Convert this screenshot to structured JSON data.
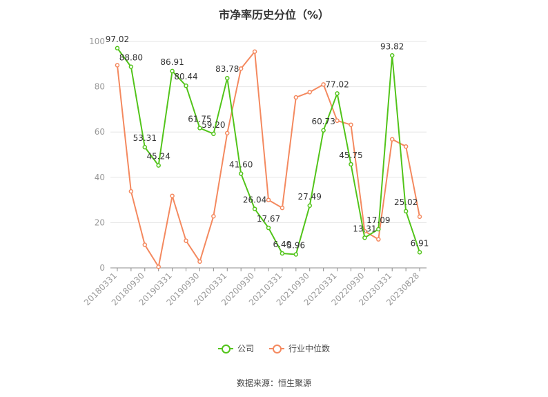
{
  "chart_data": {
    "type": "line",
    "title": "市净率历史分位（%）",
    "ylim": [
      0,
      100
    ],
    "yticks": [
      0,
      20,
      40,
      60,
      80,
      100
    ],
    "grid": true,
    "legend_position": "bottom",
    "x": [
      "20180331",
      "20180630",
      "20180930",
      "20181231",
      "20190331",
      "20190630",
      "20190930",
      "20191231",
      "20200331",
      "20200630",
      "20200930",
      "20201231",
      "20210331",
      "20210630",
      "20210930",
      "20211231",
      "20220331",
      "20220630",
      "20220930",
      "20221231",
      "20230331",
      "20230630",
      "20230828"
    ],
    "x_tick_labels": [
      "20180331",
      "20180930",
      "20190331",
      "20190930",
      "20200331",
      "20200930",
      "20210331",
      "20210930",
      "20220331",
      "20220930",
      "20230331",
      "20230828"
    ],
    "series": [
      {
        "name": "公司",
        "color": "#52c41a",
        "values": [
          97.02,
          88.8,
          53.31,
          45.24,
          86.91,
          80.44,
          61.75,
          59.2,
          83.78,
          41.6,
          26.04,
          17.67,
          6.4,
          5.96,
          27.49,
          60.73,
          77.02,
          45.75,
          13.31,
          17.09,
          93.82,
          25.02,
          6.91
        ],
        "labels": [
          "97.02",
          "88.80",
          "53.31",
          "45.24",
          "86.91",
          "80.44",
          "61.75",
          "59.20",
          "83.78",
          "41.60",
          "26.04",
          "17.67",
          "6.40",
          "5.96",
          "27.49",
          "60.73",
          "77.02",
          "45.75",
          "13.31",
          "17.09",
          "93.82",
          "25.02",
          "6.91"
        ]
      },
      {
        "name": "行业中位数",
        "color": "#f4895f",
        "values": [
          89.5,
          33.8,
          10.2,
          0.5,
          31.8,
          12.0,
          2.8,
          22.8,
          59.5,
          88.0,
          95.5,
          30.0,
          26.5,
          75.3,
          77.6,
          81.0,
          65.0,
          63.2,
          16.2,
          12.6,
          56.8,
          53.6,
          22.6
        ]
      }
    ]
  },
  "legend": {
    "company_label": "公司",
    "industry_label": "行业中位数"
  },
  "footer": {
    "source": "数据来源：恒生聚源"
  }
}
